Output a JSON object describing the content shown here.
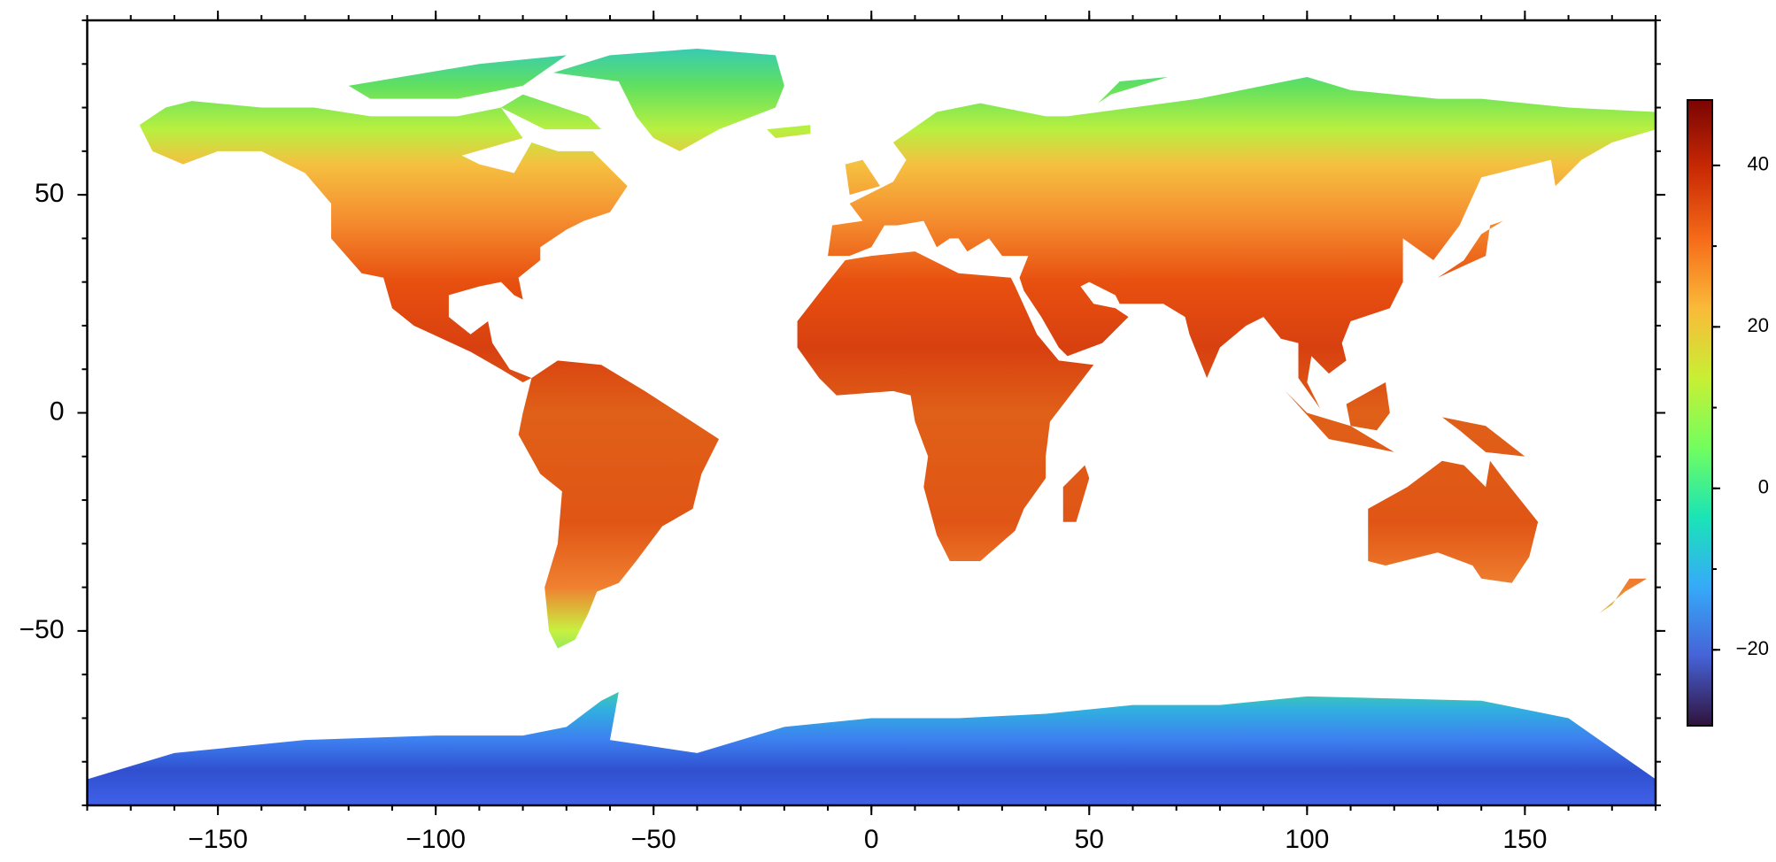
{
  "chart_data": {
    "type": "map",
    "xlim": [
      -180,
      180
    ],
    "ylim": [
      -90,
      90
    ],
    "xticks": [
      {
        "value": -150,
        "label": "−150"
      },
      {
        "value": -100,
        "label": "−100"
      },
      {
        "value": -50,
        "label": "−50"
      },
      0,
      50,
      100,
      150
    ],
    "yticks": [
      {
        "value": -50,
        "label": "−50"
      },
      0,
      50
    ],
    "minor_step": 10,
    "colorbar": {
      "clim": [
        -29.4,
        48.1
      ],
      "ticks": [
        {
          "value": -20,
          "label": "−20"
        },
        0,
        20,
        40
      ],
      "minor_step": 10,
      "colors": [
        "#30123b",
        "#4662d7",
        "#36aaf9",
        "#1ae4b6",
        "#72fe5e",
        "#c8ef34",
        "#faba39",
        "#f66b19",
        "#ca2a04",
        "#7a0403"
      ]
    }
  }
}
